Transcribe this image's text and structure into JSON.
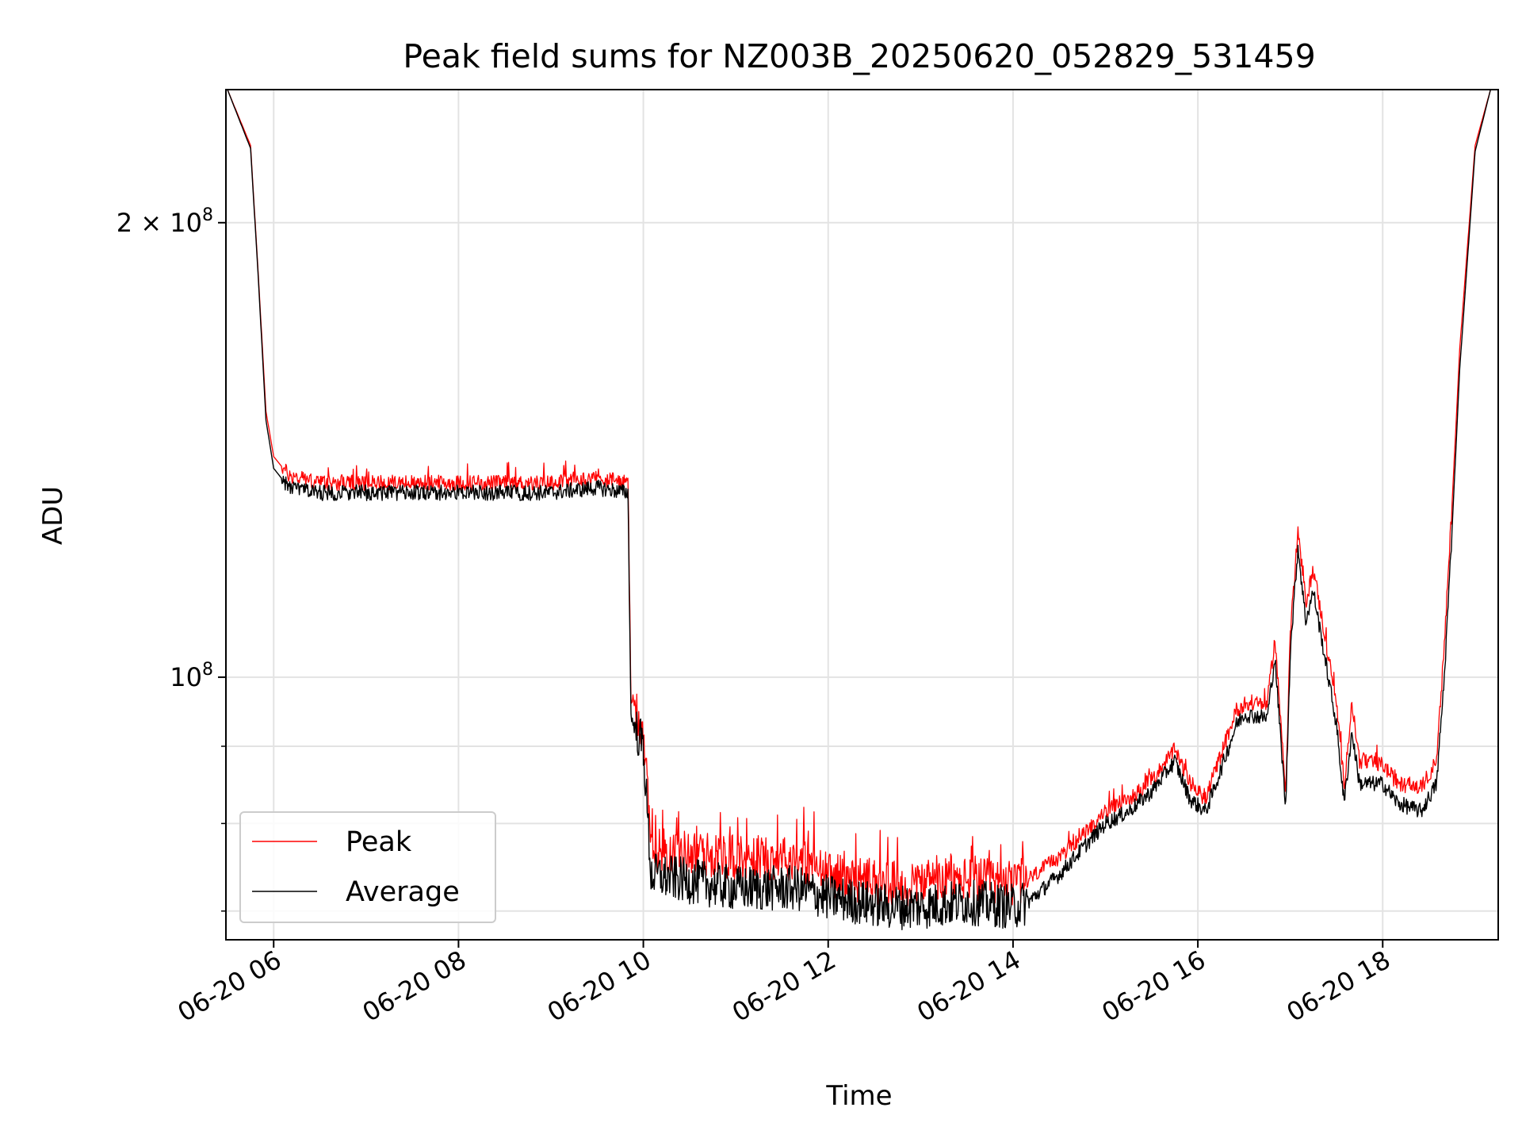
{
  "chart_data": {
    "type": "line",
    "title": "Peak field sums for NZ003B_20250620_052829_531459",
    "xlabel": "Time",
    "ylabel": "ADU",
    "x_scale": "time",
    "y_scale": "log",
    "xlim": [
      "2025-06-20 05:29",
      "2025-06-20 19:15"
    ],
    "ylim": [
      67000000,
      245000000
    ],
    "x_ticks": [
      "06-20 06",
      "06-20 08",
      "06-20 10",
      "06-20 12",
      "06-20 14",
      "06-20 16",
      "06-20 18"
    ],
    "x_tick_values": [
      "2025-06-20 06:00",
      "2025-06-20 08:00",
      "2025-06-20 10:00",
      "2025-06-20 12:00",
      "2025-06-20 14:00",
      "2025-06-20 16:00",
      "2025-06-20 18:00"
    ],
    "y_major_ticks": [
      {
        "value": 100000000,
        "label_base": "10",
        "label_exp": "8"
      },
      {
        "value": 200000000,
        "label_base": "2 × 10",
        "label_exp": "8"
      }
    ],
    "y_minor_ticks": [
      70000000,
      80000000,
      90000000
    ],
    "grid": true,
    "legend_position": "lower-left",
    "series": [
      {
        "name": "Peak",
        "color": "#ff0000",
        "x": [
          "2025-06-20 05:30",
          "2025-06-20 05:45",
          "2025-06-20 05:50",
          "2025-06-20 05:55",
          "2025-06-20 06:00",
          "2025-06-20 06:10",
          "2025-06-20 06:30",
          "2025-06-20 07:00",
          "2025-06-20 07:30",
          "2025-06-20 08:00",
          "2025-06-20 08:30",
          "2025-06-20 09:00",
          "2025-06-20 09:30",
          "2025-06-20 09:50",
          "2025-06-20 09:52",
          "2025-06-20 10:00",
          "2025-06-20 10:05",
          "2025-06-20 11:00",
          "2025-06-20 11:40",
          "2025-06-20 12:00",
          "2025-06-20 12:40",
          "2025-06-20 13:00",
          "2025-06-20 13:30",
          "2025-06-20 14:00",
          "2025-06-20 14:10",
          "2025-06-20 14:30",
          "2025-06-20 14:45",
          "2025-06-20 15:00",
          "2025-06-20 15:15",
          "2025-06-20 15:30",
          "2025-06-20 15:45",
          "2025-06-20 15:55",
          "2025-06-20 16:05",
          "2025-06-20 16:10",
          "2025-06-20 16:25",
          "2025-06-20 16:30",
          "2025-06-20 16:45",
          "2025-06-20 16:50",
          "2025-06-20 16:57",
          "2025-06-20 17:00",
          "2025-06-20 17:05",
          "2025-06-20 17:10",
          "2025-06-20 17:15",
          "2025-06-20 17:30",
          "2025-06-20 17:35",
          "2025-06-20 17:40",
          "2025-06-20 17:45",
          "2025-06-20 18:00",
          "2025-06-20 18:10",
          "2025-06-20 18:25",
          "2025-06-20 18:35",
          "2025-06-20 18:40",
          "2025-06-20 18:45",
          "2025-06-20 18:50",
          "2025-06-20 19:00",
          "2025-06-20 19:10"
        ],
        "y": [
          245000000,
          225000000,
          185000000,
          150000000,
          140000000,
          136000000,
          134500000,
          134500000,
          134500000,
          134500000,
          134500000,
          134500000,
          135500000,
          134500000,
          97000000,
          92000000,
          77000000,
          76000000,
          76000000,
          74000000,
          73000000,
          73000000,
          73500000,
          73000000,
          73500000,
          76000000,
          78500000,
          81500000,
          83000000,
          85500000,
          89500000,
          85000000,
          83000000,
          86000000,
          95000000,
          96000000,
          96000000,
          106000000,
          84000000,
          107000000,
          125000000,
          112000000,
          118000000,
          96000000,
          85000000,
          96000000,
          88000000,
          87500000,
          85000000,
          84500000,
          88000000,
          105000000,
          130000000,
          165000000,
          225000000,
          245000000
        ]
      },
      {
        "name": "Average",
        "color": "#000000",
        "x": [
          "2025-06-20 05:30",
          "2025-06-20 05:45",
          "2025-06-20 05:50",
          "2025-06-20 05:55",
          "2025-06-20 06:00",
          "2025-06-20 06:10",
          "2025-06-20 06:30",
          "2025-06-20 07:00",
          "2025-06-20 07:30",
          "2025-06-20 08:00",
          "2025-06-20 08:30",
          "2025-06-20 09:00",
          "2025-06-20 09:30",
          "2025-06-20 09:50",
          "2025-06-20 09:52",
          "2025-06-20 10:00",
          "2025-06-20 10:05",
          "2025-06-20 11:00",
          "2025-06-20 11:40",
          "2025-06-20 12:00",
          "2025-06-20 12:40",
          "2025-06-20 13:00",
          "2025-06-20 13:30",
          "2025-06-20 14:00",
          "2025-06-20 14:10",
          "2025-06-20 14:30",
          "2025-06-20 14:45",
          "2025-06-20 15:00",
          "2025-06-20 15:15",
          "2025-06-20 15:30",
          "2025-06-20 15:45",
          "2025-06-20 15:55",
          "2025-06-20 16:05",
          "2025-06-20 16:10",
          "2025-06-20 16:25",
          "2025-06-20 16:30",
          "2025-06-20 16:45",
          "2025-06-20 16:50",
          "2025-06-20 16:57",
          "2025-06-20 17:00",
          "2025-06-20 17:05",
          "2025-06-20 17:10",
          "2025-06-20 17:15",
          "2025-06-20 17:30",
          "2025-06-20 17:35",
          "2025-06-20 17:40",
          "2025-06-20 17:45",
          "2025-06-20 18:00",
          "2025-06-20 18:10",
          "2025-06-20 18:25",
          "2025-06-20 18:35",
          "2025-06-20 18:40",
          "2025-06-20 18:45",
          "2025-06-20 18:50",
          "2025-06-20 19:00",
          "2025-06-20 19:10"
        ],
        "y": [
          245000000,
          224000000,
          184000000,
          148000000,
          137500000,
          133500000,
          132500000,
          132500000,
          132500000,
          132500000,
          132500000,
          132500000,
          133500000,
          132500000,
          94000000,
          90000000,
          74000000,
          72500000,
          72500000,
          71500000,
          70500000,
          70500000,
          71000000,
          70500000,
          71000000,
          74000000,
          77000000,
          80000000,
          81500000,
          84000000,
          88000000,
          83000000,
          81500000,
          84000000,
          93000000,
          94500000,
          94000000,
          103000000,
          82000000,
          104000000,
          122000000,
          109000000,
          114000000,
          93000000,
          82500000,
          92000000,
          85000000,
          85000000,
          82500000,
          81500000,
          85000000,
          100000000,
          125000000,
          160000000,
          223000000,
          245000000
        ]
      }
    ]
  }
}
